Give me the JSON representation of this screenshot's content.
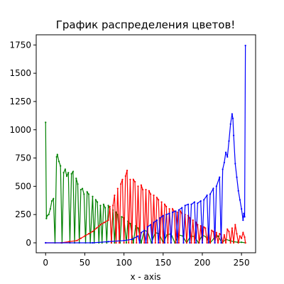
{
  "chart_data": {
    "type": "line",
    "title": "График распределения цветов!",
    "xlabel": "x - axis",
    "ylabel": "",
    "xlim": [
      -12,
      268
    ],
    "ylim": [
      -88,
      1840
    ],
    "xticks": [
      0,
      50,
      100,
      150,
      200,
      250
    ],
    "yticks": [
      0,
      250,
      500,
      750,
      1000,
      1250,
      1500,
      1750
    ],
    "grid": false,
    "legend": "none",
    "series": [
      {
        "color": "#008000",
        "points": [
          [
            0,
            1065
          ],
          [
            1,
            215
          ],
          [
            2,
            240
          ],
          [
            4,
            250
          ],
          [
            6,
            300
          ],
          [
            8,
            370
          ],
          [
            10,
            390
          ],
          [
            12,
            0
          ],
          [
            14,
            760
          ],
          [
            15,
            780
          ],
          [
            17,
            720
          ],
          [
            19,
            680
          ],
          [
            21,
            0
          ],
          [
            23,
            620
          ],
          [
            25,
            650
          ],
          [
            27,
            590
          ],
          [
            29,
            620
          ],
          [
            31,
            0
          ],
          [
            33,
            610
          ],
          [
            35,
            630
          ],
          [
            37,
            0
          ],
          [
            39,
            570
          ],
          [
            41,
            520
          ],
          [
            43,
            0
          ],
          [
            45,
            470
          ],
          [
            47,
            480
          ],
          [
            49,
            430
          ],
          [
            51,
            0
          ],
          [
            53,
            450
          ],
          [
            55,
            430
          ],
          [
            57,
            0
          ],
          [
            60,
            410
          ],
          [
            62,
            0
          ],
          [
            64,
            380
          ],
          [
            66,
            360
          ],
          [
            68,
            0
          ],
          [
            70,
            330
          ],
          [
            72,
            0
          ],
          [
            74,
            340
          ],
          [
            76,
            310
          ],
          [
            78,
            0
          ],
          [
            80,
            330
          ],
          [
            82,
            300
          ],
          [
            84,
            0
          ],
          [
            86,
            290
          ],
          [
            88,
            0
          ],
          [
            90,
            270
          ],
          [
            92,
            250
          ],
          [
            95,
            0
          ],
          [
            97,
            230
          ],
          [
            100,
            220
          ],
          [
            103,
            0
          ],
          [
            105,
            190
          ],
          [
            108,
            170
          ],
          [
            112,
            0
          ],
          [
            115,
            150
          ],
          [
            118,
            130
          ],
          [
            122,
            0
          ],
          [
            126,
            110
          ],
          [
            130,
            100
          ],
          [
            135,
            0
          ],
          [
            140,
            90
          ],
          [
            145,
            80
          ],
          [
            150,
            0
          ],
          [
            155,
            70
          ],
          [
            160,
            80
          ],
          [
            165,
            0
          ],
          [
            170,
            70
          ],
          [
            175,
            60
          ],
          [
            180,
            0
          ],
          [
            185,
            60
          ],
          [
            190,
            55
          ],
          [
            195,
            0
          ],
          [
            200,
            70
          ],
          [
            205,
            50
          ],
          [
            210,
            0
          ],
          [
            215,
            40
          ],
          [
            220,
            60
          ],
          [
            225,
            0
          ],
          [
            230,
            30
          ],
          [
            235,
            20
          ],
          [
            240,
            10
          ],
          [
            245,
            5
          ],
          [
            250,
            5
          ],
          [
            255,
            0
          ]
        ]
      },
      {
        "color": "#ff0000",
        "points": [
          [
            0,
            0
          ],
          [
            20,
            0
          ],
          [
            30,
            10
          ],
          [
            40,
            20
          ],
          [
            45,
            40
          ],
          [
            50,
            60
          ],
          [
            55,
            80
          ],
          [
            60,
            100
          ],
          [
            65,
            130
          ],
          [
            70,
            160
          ],
          [
            75,
            180
          ],
          [
            80,
            200
          ],
          [
            82,
            320
          ],
          [
            84,
            0
          ],
          [
            86,
            330
          ],
          [
            88,
            420
          ],
          [
            90,
            0
          ],
          [
            92,
            480
          ],
          [
            94,
            0
          ],
          [
            96,
            520
          ],
          [
            98,
            560
          ],
          [
            100,
            0
          ],
          [
            102,
            590
          ],
          [
            104,
            640
          ],
          [
            106,
            0
          ],
          [
            108,
            560
          ],
          [
            110,
            0
          ],
          [
            112,
            560
          ],
          [
            114,
            540
          ],
          [
            116,
            0
          ],
          [
            118,
            500
          ],
          [
            120,
            0
          ],
          [
            122,
            510
          ],
          [
            124,
            470
          ],
          [
            126,
            0
          ],
          [
            128,
            470
          ],
          [
            130,
            0
          ],
          [
            132,
            460
          ],
          [
            134,
            430
          ],
          [
            136,
            0
          ],
          [
            138,
            420
          ],
          [
            140,
            0
          ],
          [
            142,
            400
          ],
          [
            144,
            380
          ],
          [
            146,
            0
          ],
          [
            148,
            360
          ],
          [
            150,
            0
          ],
          [
            152,
            340
          ],
          [
            154,
            320
          ],
          [
            156,
            0
          ],
          [
            158,
            300
          ],
          [
            160,
            0
          ],
          [
            162,
            300
          ],
          [
            164,
            280
          ],
          [
            166,
            0
          ],
          [
            168,
            270
          ],
          [
            170,
            0
          ],
          [
            172,
            280
          ],
          [
            174,
            260
          ],
          [
            176,
            0
          ],
          [
            178,
            250
          ],
          [
            180,
            0
          ],
          [
            182,
            240
          ],
          [
            184,
            220
          ],
          [
            186,
            0
          ],
          [
            188,
            200
          ],
          [
            190,
            0
          ],
          [
            192,
            180
          ],
          [
            194,
            160
          ],
          [
            196,
            0
          ],
          [
            198,
            150
          ],
          [
            200,
            0
          ],
          [
            202,
            140
          ],
          [
            204,
            130
          ],
          [
            206,
            0
          ],
          [
            208,
            120
          ],
          [
            210,
            0
          ],
          [
            212,
            110
          ],
          [
            214,
            100
          ],
          [
            216,
            0
          ],
          [
            218,
            90
          ],
          [
            220,
            0
          ],
          [
            222,
            80
          ],
          [
            224,
            70
          ],
          [
            226,
            0
          ],
          [
            228,
            70
          ],
          [
            230,
            0
          ],
          [
            232,
            120
          ],
          [
            234,
            100
          ],
          [
            236,
            0
          ],
          [
            238,
            130
          ],
          [
            240,
            0
          ],
          [
            242,
            160
          ],
          [
            244,
            80
          ],
          [
            246,
            0
          ],
          [
            248,
            60
          ],
          [
            250,
            40
          ],
          [
            252,
            90
          ],
          [
            254,
            50
          ],
          [
            255,
            0
          ]
        ]
      },
      {
        "color": "#0000ff",
        "points": [
          [
            0,
            0
          ],
          [
            60,
            0
          ],
          [
            80,
            10
          ],
          [
            100,
            20
          ],
          [
            110,
            30
          ],
          [
            118,
            60
          ],
          [
            120,
            0
          ],
          [
            122,
            90
          ],
          [
            126,
            110
          ],
          [
            128,
            0
          ],
          [
            130,
            140
          ],
          [
            134,
            160
          ],
          [
            136,
            0
          ],
          [
            138,
            180
          ],
          [
            142,
            200
          ],
          [
            144,
            0
          ],
          [
            146,
            220
          ],
          [
            150,
            240
          ],
          [
            152,
            0
          ],
          [
            154,
            250
          ],
          [
            158,
            260
          ],
          [
            160,
            0
          ],
          [
            162,
            270
          ],
          [
            166,
            280
          ],
          [
            168,
            0
          ],
          [
            170,
            290
          ],
          [
            174,
            310
          ],
          [
            176,
            0
          ],
          [
            178,
            330
          ],
          [
            182,
            340
          ],
          [
            184,
            0
          ],
          [
            186,
            340
          ],
          [
            190,
            360
          ],
          [
            192,
            0
          ],
          [
            194,
            350
          ],
          [
            198,
            370
          ],
          [
            200,
            0
          ],
          [
            202,
            380
          ],
          [
            206,
            420
          ],
          [
            208,
            0
          ],
          [
            210,
            430
          ],
          [
            214,
            480
          ],
          [
            216,
            0
          ],
          [
            218,
            500
          ],
          [
            222,
            580
          ],
          [
            224,
            0
          ],
          [
            226,
            650
          ],
          [
            228,
            710
          ],
          [
            230,
            800
          ],
          [
            232,
            760
          ],
          [
            234,
            900
          ],
          [
            236,
            1050
          ],
          [
            238,
            1140
          ],
          [
            239,
            1100
          ],
          [
            240,
            950
          ],
          [
            242,
            700
          ],
          [
            244,
            580
          ],
          [
            246,
            460
          ],
          [
            248,
            380
          ],
          [
            250,
            300
          ],
          [
            252,
            200
          ],
          [
            253,
            260
          ],
          [
            254,
            230
          ],
          [
            255,
            1745
          ]
        ]
      }
    ]
  }
}
